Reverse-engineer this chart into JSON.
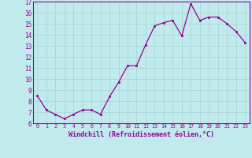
{
  "x": [
    0,
    1,
    2,
    3,
    4,
    5,
    6,
    7,
    8,
    9,
    10,
    11,
    12,
    13,
    14,
    15,
    16,
    17,
    18,
    19,
    20,
    21,
    22,
    23
  ],
  "y": [
    8.5,
    7.2,
    6.8,
    6.4,
    6.8,
    7.2,
    7.2,
    6.8,
    8.4,
    9.7,
    11.2,
    11.2,
    13.1,
    14.8,
    15.1,
    15.3,
    13.9,
    16.8,
    15.3,
    15.6,
    15.6,
    15.0,
    14.3,
    13.3
  ],
  "line_color": "#990099",
  "marker_color": "#990099",
  "bg_color": "#c0eaec",
  "grid_color": "#aed8da",
  "xlabel": "Windchill (Refroidissement éolien,°C)",
  "xlabel_color": "#990099",
  "ylim_min": 6,
  "ylim_max": 17,
  "yticks": [
    6,
    7,
    8,
    9,
    10,
    11,
    12,
    13,
    14,
    15,
    16,
    17
  ],
  "xtick_labels": [
    "0",
    "1",
    "2",
    "3",
    "4",
    "5",
    "6",
    "7",
    "8",
    "9",
    "10",
    "11",
    "12",
    "13",
    "14",
    "15",
    "16",
    "17",
    "18",
    "19",
    "20",
    "21",
    "22",
    "23"
  ],
  "tick_color": "#990099",
  "font_name": "monospace"
}
